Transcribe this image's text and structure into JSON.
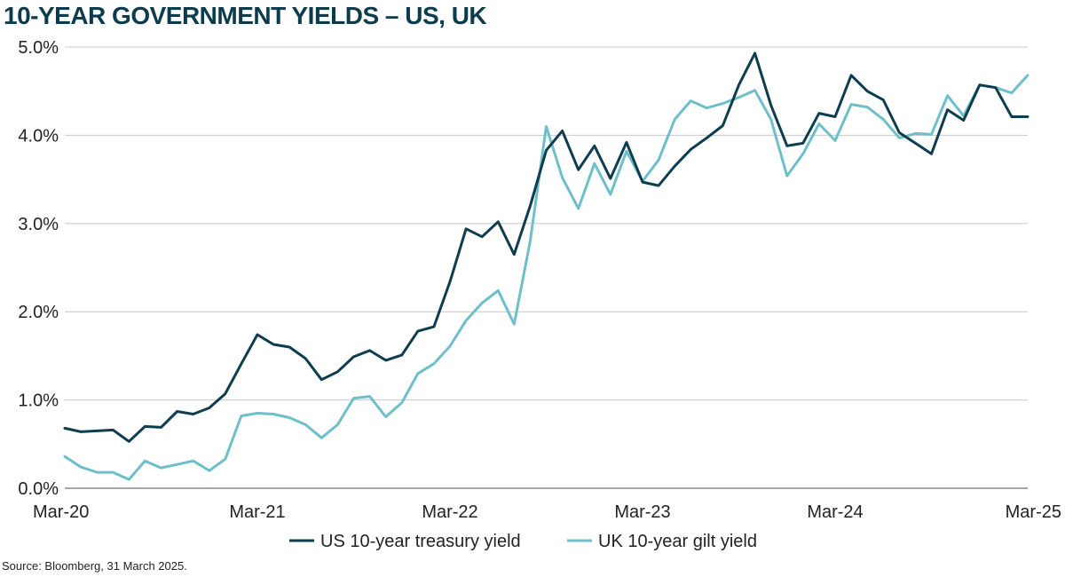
{
  "chart_data": {
    "type": "line",
    "title": "10-YEAR GOVERNMENT YIELDS – US, UK",
    "xlabel": "",
    "ylabel": "",
    "x_ticks": [
      "Mar-20",
      "Mar-21",
      "Mar-22",
      "Mar-23",
      "Mar-24",
      "Mar-25"
    ],
    "y_ticks": [
      "0.0%",
      "1.0%",
      "2.0%",
      "3.0%",
      "4.0%",
      "5.0%"
    ],
    "ylim": [
      0,
      5
    ],
    "grid": "horizontal",
    "legend_position": "bottom-center",
    "series": [
      {
        "name": "US 10-year treasury yield",
        "color": "#0d3d4f",
        "values": [
          0.68,
          0.64,
          0.65,
          0.66,
          0.53,
          0.7,
          0.69,
          0.87,
          0.84,
          0.91,
          1.07,
          1.41,
          1.74,
          1.63,
          1.6,
          1.47,
          1.23,
          1.32,
          1.49,
          1.56,
          1.45,
          1.51,
          1.78,
          1.83,
          2.34,
          2.94,
          2.85,
          3.02,
          2.65,
          3.2,
          3.83,
          4.05,
          3.61,
          3.88,
          3.51,
          3.92,
          3.47,
          3.43,
          3.65,
          3.84,
          3.97,
          4.11,
          4.57,
          4.93,
          4.34,
          3.88,
          3.91,
          4.25,
          4.21,
          4.68,
          4.5,
          4.4,
          4.03,
          3.91,
          3.79,
          4.29,
          4.17,
          4.57,
          4.54,
          4.21,
          4.21
        ]
      },
      {
        "name": "UK 10-year gilt yield",
        "color": "#6fbfcb",
        "values": [
          0.36,
          0.24,
          0.18,
          0.18,
          0.1,
          0.31,
          0.23,
          0.27,
          0.31,
          0.2,
          0.33,
          0.82,
          0.85,
          0.84,
          0.8,
          0.72,
          0.57,
          0.72,
          1.02,
          1.04,
          0.81,
          0.97,
          1.3,
          1.41,
          1.61,
          1.9,
          2.1,
          2.24,
          1.86,
          2.8,
          4.1,
          3.52,
          3.17,
          3.68,
          3.33,
          3.82,
          3.48,
          3.72,
          4.18,
          4.39,
          4.31,
          4.36,
          4.43,
          4.51,
          4.18,
          3.54,
          3.79,
          4.13,
          3.94,
          4.35,
          4.32,
          4.18,
          3.97,
          4.02,
          4.01,
          4.45,
          4.22,
          4.57,
          4.54,
          4.48,
          4.68
        ]
      }
    ],
    "source": "Source: Bloomberg, 31 March 2025."
  }
}
